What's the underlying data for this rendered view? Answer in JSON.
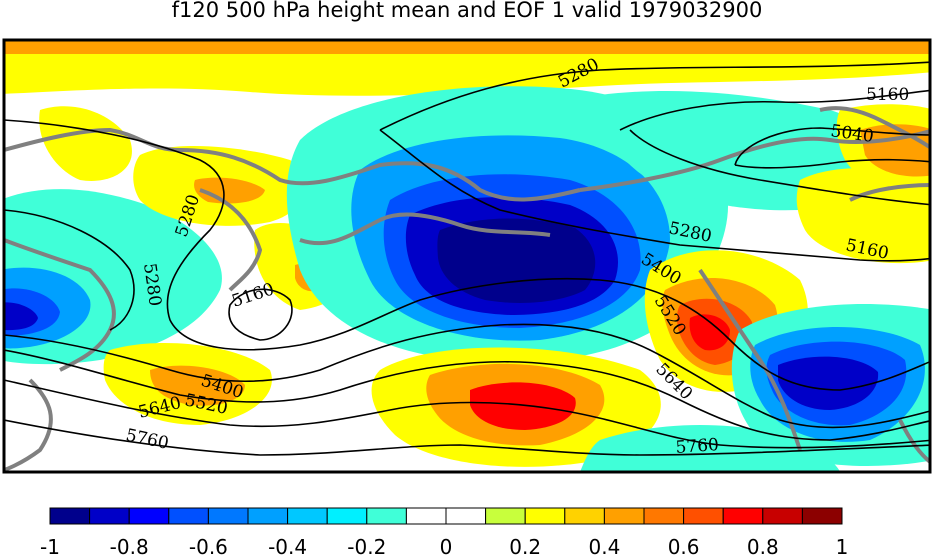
{
  "title": "f120 500 hPa height mean and EOF 1 valid 1979032900",
  "contour_labels": [
    "5280",
    "5160",
    "5040",
    "5160",
    "5280",
    "5400",
    "5520",
    "5640",
    "5760",
    "5280",
    "5280",
    "5160",
    "5400",
    "5520",
    "5640",
    "5760"
  ],
  "colorbar": {
    "colors": [
      "#00008c",
      "#0000c8",
      "#0000ff",
      "#0050ff",
      "#0078ff",
      "#00a0ff",
      "#00c8ff",
      "#00f0ff",
      "#40ffd8",
      "#ffffff",
      "#ffffff",
      "#c8ff3c",
      "#ffff00",
      "#ffd200",
      "#ffa000",
      "#ff7800",
      "#ff5000",
      "#ff0000",
      "#c80000",
      "#8c0000"
    ],
    "tick_labels": [
      "-1",
      "-0.8",
      "-0.6",
      "-0.4",
      "-0.2",
      "0",
      "0.2",
      "0.4",
      "0.6",
      "0.8",
      "1"
    ]
  },
  "field_colors": {
    "neg_strong": "#00008c",
    "neg_mid": "#0000c8",
    "neg": "#0050ff",
    "neg_light": "#00a0ff",
    "neg_weak": "#40ffd8",
    "pos_weak": "#ffff00",
    "pos": "#ffd200",
    "pos_mid": "#ffa000",
    "pos_strong": "#ff5000",
    "pos_max": "#ff0000"
  }
}
